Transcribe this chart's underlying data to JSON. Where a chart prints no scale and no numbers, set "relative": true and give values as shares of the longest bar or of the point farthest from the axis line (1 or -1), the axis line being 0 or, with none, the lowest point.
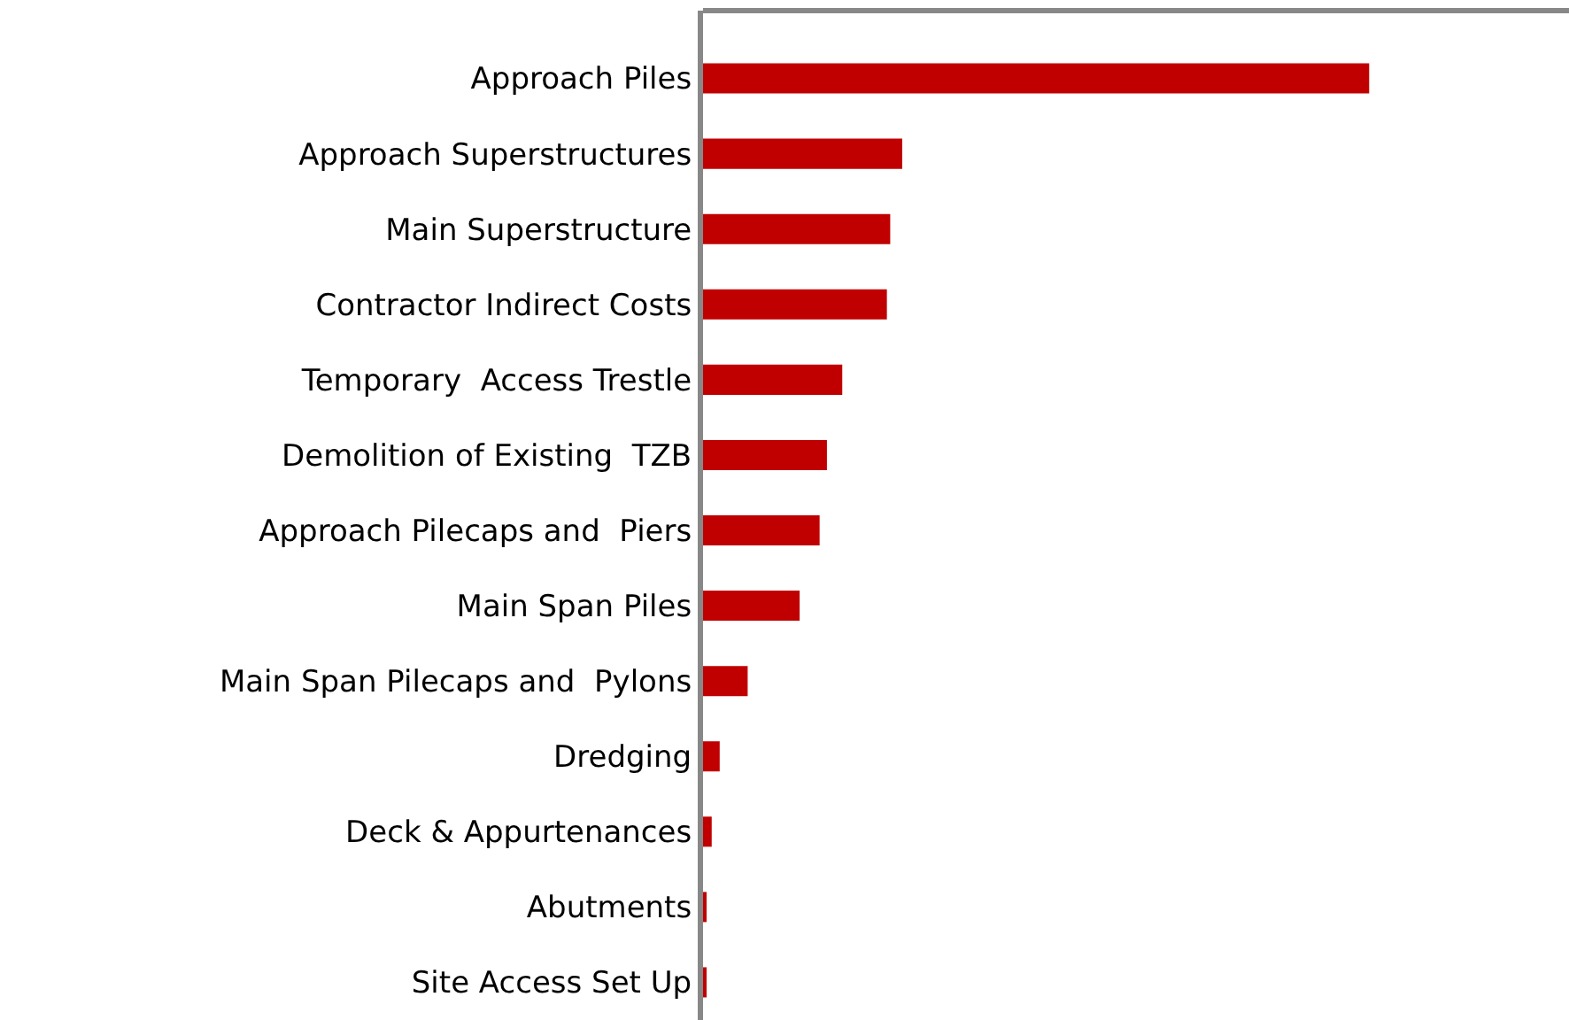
{
  "chart_data": {
    "type": "bar",
    "orientation": "horizontal",
    "relative": true,
    "categories": [
      "Approach Piles",
      "Approach Superstructures",
      "Main Superstructure",
      "Contractor Indirect Costs",
      "Temporary  Access Trestle",
      "Demolition of Existing  TZB",
      "Approach Pilecaps and  Piers",
      "Main Span Piles",
      "Main Span Pilecaps and  Pylons",
      "Dredging",
      "Deck & Appurtenances",
      "Abutments",
      "Site Access Set Up"
    ],
    "values": [
      1,
      0.299,
      0.281,
      0.276,
      0.209,
      0.186,
      0.175,
      0.145,
      0.067,
      0.025,
      0.013,
      0.003,
      0.003
    ],
    "color": "#c00000"
  }
}
